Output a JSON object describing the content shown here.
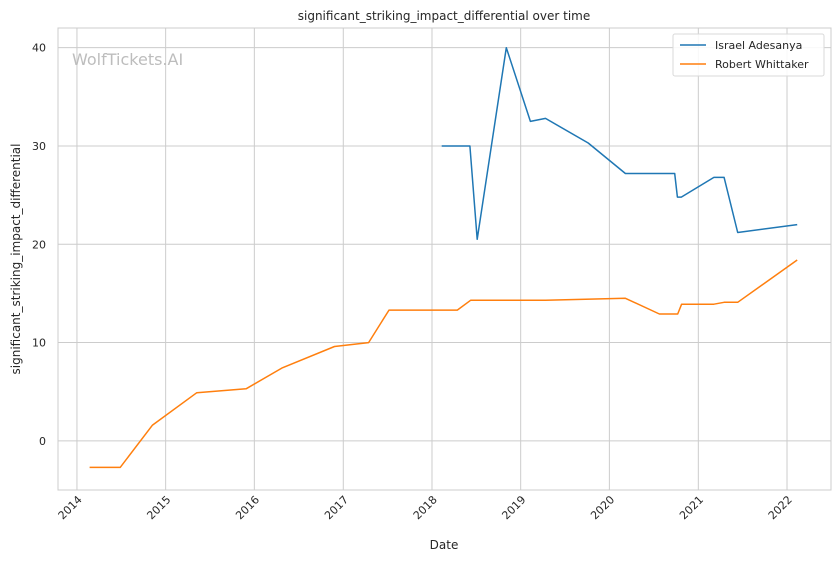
{
  "chart_data": {
    "type": "line",
    "title": "significant_striking_impact_differential over time",
    "xlabel": "Date",
    "ylabel": "significant_striking_impact_differential",
    "watermark": "WolfTickets.AI",
    "xlim": [
      "2013-10-15",
      "2022-07-01"
    ],
    "ylim": [
      -5,
      42
    ],
    "x_ticks": [
      "2014",
      "2015",
      "2016",
      "2017",
      "2018",
      "2019",
      "2020",
      "2021",
      "2022"
    ],
    "y_ticks": [
      0,
      10,
      20,
      30,
      40
    ],
    "grid": true,
    "legend_position": "top-right",
    "colors": {
      "Israel Adesanya": "#1f77b4",
      "Robert Whittaker": "#ff7f0e"
    },
    "series": [
      {
        "name": "Israel Adesanya",
        "x": [
          "2018-02-10",
          "2018-06-06",
          "2018-07-06",
          "2018-11-03",
          "2019-02-10",
          "2019-04-13",
          "2019-10-06",
          "2020-03-07",
          "2020-09-26",
          "2020-10-07",
          "2020-10-23",
          "2021-03-06",
          "2021-04-17",
          "2021-06-12",
          "2022-02-12"
        ],
        "y": [
          30.0,
          30.0,
          20.5,
          40.0,
          32.5,
          32.8,
          30.3,
          27.2,
          27.2,
          24.8,
          24.8,
          26.8,
          26.8,
          21.2,
          22.0
        ]
      },
      {
        "name": "Robert Whittaker",
        "x": [
          "2014-02-22",
          "2014-06-28",
          "2014-11-08",
          "2015-05-09",
          "2015-11-28",
          "2016-04-23",
          "2016-11-26",
          "2017-04-15",
          "2017-07-08",
          "2018-04-15",
          "2018-06-09",
          "2019-04-13",
          "2020-03-07",
          "2020-07-25",
          "2020-10-08",
          "2020-10-24",
          "2021-03-06",
          "2021-04-17",
          "2021-06-12",
          "2022-02-12"
        ],
        "y": [
          -2.7,
          -2.7,
          1.6,
          4.9,
          5.3,
          7.4,
          9.6,
          10.0,
          13.3,
          13.3,
          14.3,
          14.3,
          14.5,
          12.9,
          12.9,
          13.9,
          13.9,
          14.1,
          14.1,
          18.4
        ]
      }
    ]
  }
}
